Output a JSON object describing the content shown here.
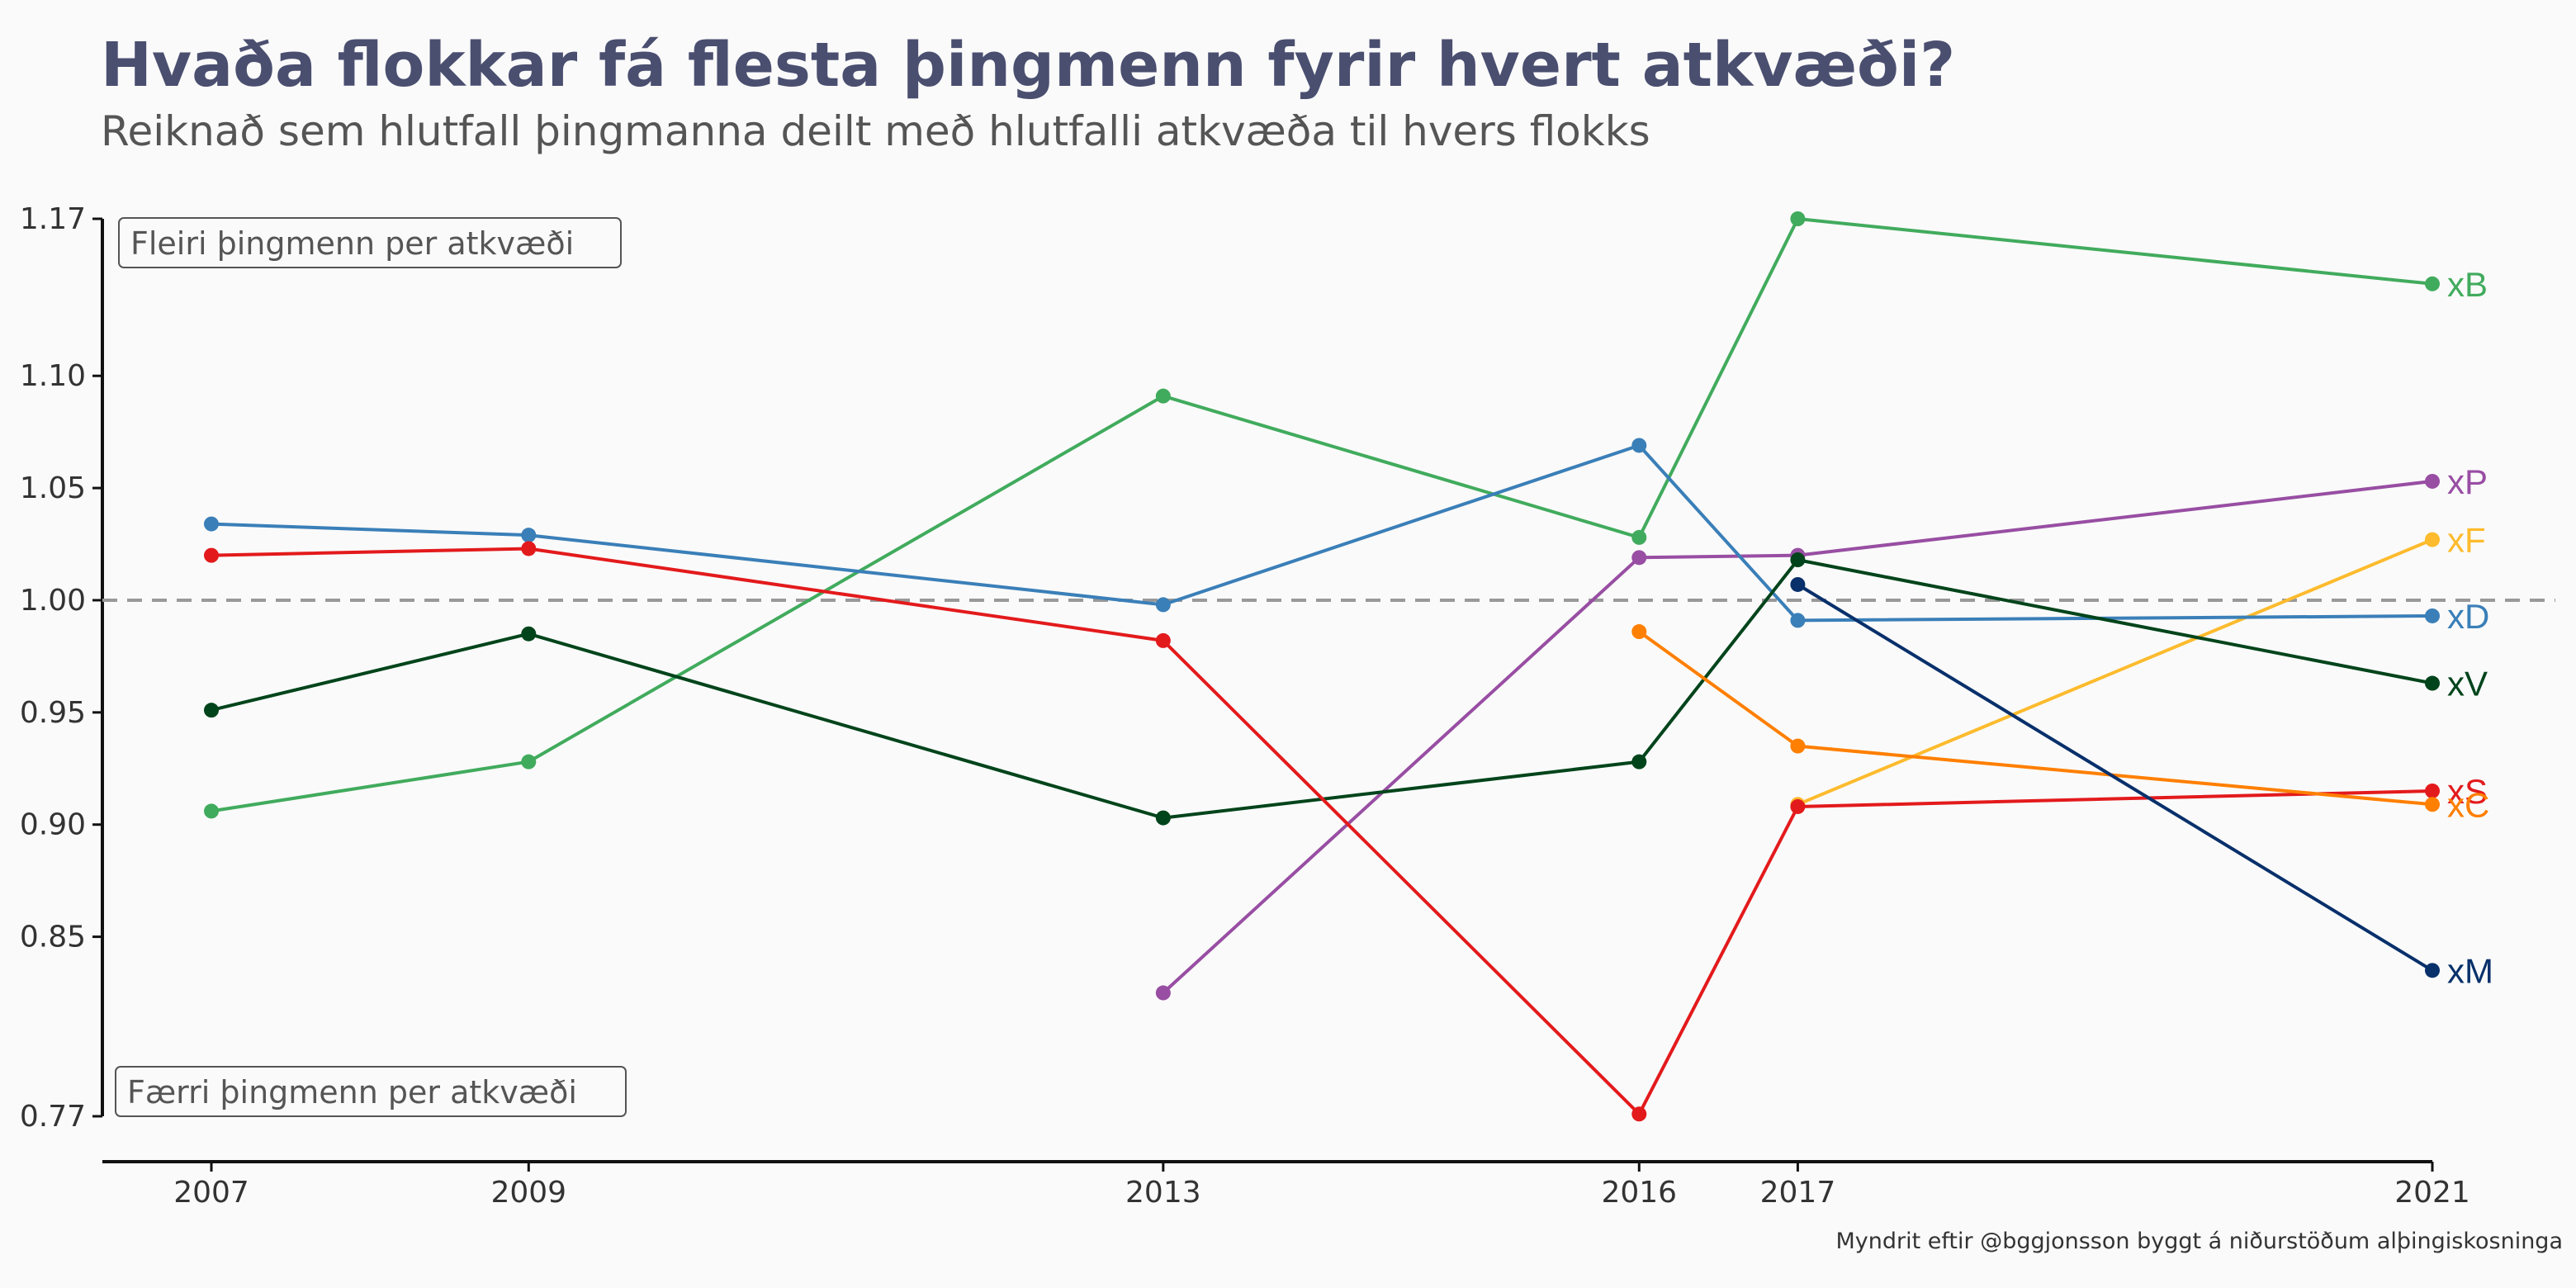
{
  "title": "Hvaða flokkar fá flesta þingmenn fyrir hvert atkvæði?",
  "subtitle": "Reiknað sem hlutfall þingmanna deilt með hlutfalli atkvæða til hvers flokks",
  "caption": "Myndrit eftir @bggjonsson byggt á niðurstöðum alþingiskosninga",
  "chart_data": {
    "type": "line",
    "title": "Hvaða flokkar fá flesta þingmenn fyrir hvert atkvæði?",
    "subtitle": "Reiknað sem hlutfall þingmanna deilt með hlutfalli atkvæða til hvers flokks",
    "xlabel": "",
    "ylabel": "",
    "x_ticks": [
      2007,
      2009,
      2013,
      2016,
      2017,
      2021
    ],
    "y_ticks": [
      "0.77",
      "0.85",
      "0.90",
      "0.95",
      "1.00",
      "1.05",
      "1.10",
      "1.17"
    ],
    "xlim": [
      2007,
      2021
    ],
    "ylim": [
      0.77,
      1.17
    ],
    "reference_line": 1.0,
    "grid": false,
    "annotations": {
      "top": "Fleiri þingmenn per atkvæði",
      "bottom": "Færri þingmenn per atkvæði"
    },
    "series": [
      {
        "name": "xB",
        "color": "#41ab5d",
        "points": [
          [
            2007,
            0.906
          ],
          [
            2009,
            0.928
          ],
          [
            2013,
            1.091
          ],
          [
            2016,
            1.028
          ],
          [
            2017,
            1.17
          ],
          [
            2021,
            1.141
          ]
        ]
      },
      {
        "name": "xP",
        "color": "#984ea3",
        "points": [
          [
            2013,
            0.825
          ],
          [
            2016,
            1.019
          ],
          [
            2017,
            1.02
          ],
          [
            2021,
            1.053
          ]
        ]
      },
      {
        "name": "xF",
        "color": "#fdbb2d",
        "points": [
          [
            2017,
            0.909
          ],
          [
            2021,
            1.027
          ]
        ]
      },
      {
        "name": "xD",
        "color": "#3a7fb8",
        "points": [
          [
            2007,
            1.034
          ],
          [
            2009,
            1.029
          ],
          [
            2013,
            0.998
          ],
          [
            2016,
            1.069
          ],
          [
            2017,
            0.991
          ],
          [
            2021,
            0.993
          ]
        ]
      },
      {
        "name": "xV",
        "color": "#00441b",
        "points": [
          [
            2007,
            0.951
          ],
          [
            2009,
            0.985
          ],
          [
            2013,
            0.903
          ],
          [
            2016,
            0.928
          ],
          [
            2017,
            1.018
          ],
          [
            2021,
            0.963
          ]
        ]
      },
      {
        "name": "xS",
        "color": "#e31a1c",
        "points": [
          [
            2007,
            1.02
          ],
          [
            2009,
            1.023
          ],
          [
            2013,
            0.982
          ],
          [
            2016,
            0.771
          ],
          [
            2017,
            0.908
          ],
          [
            2021,
            0.915
          ]
        ]
      },
      {
        "name": "xC",
        "color": "#ff7f00",
        "points": [
          [
            2016,
            0.986
          ],
          [
            2017,
            0.935
          ],
          [
            2021,
            0.909
          ]
        ]
      },
      {
        "name": "xM",
        "color": "#08306b",
        "points": [
          [
            2017,
            1.007
          ],
          [
            2021,
            0.835
          ]
        ]
      }
    ]
  }
}
